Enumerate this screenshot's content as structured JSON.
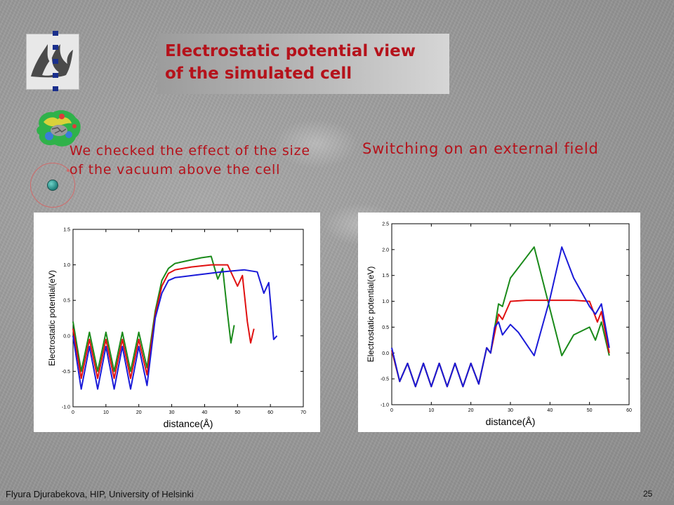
{
  "slide": {
    "title_line1": "Electrostatic potential  view",
    "title_line2": "of the simulated  cell",
    "bullet_text": "We checked the effect of the size of the vacuum above the cell",
    "right_heading": "Switching on an external field",
    "footer_text": "Flyura Djurabekova, HIP, University of Helsinki",
    "page_number": "25"
  },
  "icons": {
    "logo": "university-of-helsinki-flame-logo-icon",
    "molecule": "molecule-structure-icon",
    "bullet": "teal-bullet-icon"
  },
  "colors": {
    "title": "#b5121b",
    "text": "#b5121b",
    "green": "#1a8a1a",
    "red": "#e01010",
    "blue": "#1a1ad8"
  },
  "chart_data": [
    {
      "type": "line",
      "title": "",
      "xlabel": "distance(Å)",
      "ylabel": "Electrostatic potential(eV)",
      "xlim": [
        0,
        70
      ],
      "ylim": [
        -1.0,
        1.5
      ],
      "xticks": [
        "0",
        "10",
        "20",
        "30",
        "40",
        "50",
        "60",
        "70"
      ],
      "yticks": [
        "-1.0",
        "-0.5",
        "0.0",
        "0.5",
        "1.0",
        "1.5"
      ],
      "series": [
        {
          "color": "green",
          "x": [
            0,
            2.5,
            5,
            7.5,
            10,
            12.5,
            15,
            17.5,
            20,
            22.5,
            25,
            27,
            29,
            31,
            35,
            39,
            42,
            44,
            45.5,
            47,
            48,
            49
          ],
          "y": [
            0.2,
            -0.5,
            0.05,
            -0.5,
            0.05,
            -0.5,
            0.05,
            -0.5,
            0.05,
            -0.45,
            0.35,
            0.78,
            0.95,
            1.02,
            1.06,
            1.1,
            1.12,
            0.8,
            0.95,
            0.3,
            -0.1,
            0.15
          ]
        },
        {
          "color": "red",
          "x": [
            0,
            2.5,
            5,
            7.5,
            10,
            12.5,
            15,
            17.5,
            20,
            22.5,
            25,
            27,
            29,
            31,
            36,
            42,
            47,
            50,
            51.5,
            53,
            54,
            55
          ],
          "y": [
            0.1,
            -0.6,
            -0.05,
            -0.6,
            -0.05,
            -0.6,
            -0.05,
            -0.6,
            -0.05,
            -0.55,
            0.3,
            0.7,
            0.88,
            0.93,
            0.97,
            1.0,
            1.0,
            0.7,
            0.85,
            0.2,
            -0.1,
            0.1
          ]
        },
        {
          "color": "blue",
          "x": [
            0,
            2.5,
            5,
            7.5,
            10,
            12.5,
            15,
            17.5,
            20,
            22.5,
            25,
            27,
            29,
            31,
            38,
            45,
            52,
            56,
            58,
            59.5,
            61,
            62
          ],
          "y": [
            0.0,
            -0.75,
            -0.15,
            -0.75,
            -0.15,
            -0.75,
            -0.15,
            -0.75,
            -0.15,
            -0.7,
            0.25,
            0.6,
            0.78,
            0.82,
            0.86,
            0.9,
            0.93,
            0.9,
            0.6,
            0.75,
            -0.05,
            0.0
          ]
        }
      ]
    },
    {
      "type": "line",
      "title": "",
      "xlabel": "distance(Å)",
      "ylabel": "Electrostatic potential(eV)",
      "xlim": [
        0,
        60
      ],
      "ylim": [
        -1.0,
        2.5
      ],
      "xticks": [
        "0",
        "10",
        "20",
        "30",
        "40",
        "50",
        "60"
      ],
      "yticks": [
        "-1.0",
        "-0.5",
        "0.0",
        "0.5",
        "1.0",
        "1.5",
        "2.0",
        "2.5"
      ],
      "series": [
        {
          "color": "green",
          "x": [
            0,
            2,
            4,
            6,
            8,
            10,
            12,
            14,
            16,
            18,
            20,
            22,
            24,
            25,
            27,
            28,
            30,
            33,
            36,
            40,
            43,
            46,
            50,
            51.5,
            53,
            55
          ],
          "y": [
            0.05,
            -0.55,
            -0.2,
            -0.65,
            -0.2,
            -0.65,
            -0.2,
            -0.65,
            -0.2,
            -0.65,
            -0.2,
            -0.6,
            0.1,
            0.0,
            0.95,
            0.9,
            1.45,
            1.75,
            2.05,
            0.85,
            -0.05,
            0.35,
            0.5,
            0.25,
            0.6,
            -0.05
          ]
        },
        {
          "color": "red",
          "x": [
            0,
            2,
            4,
            6,
            8,
            10,
            12,
            14,
            16,
            18,
            20,
            22,
            24,
            25,
            27,
            28,
            30,
            34,
            40,
            46,
            50,
            52,
            53,
            55
          ],
          "y": [
            0.05,
            -0.55,
            -0.2,
            -0.65,
            -0.2,
            -0.65,
            -0.2,
            -0.65,
            -0.2,
            -0.65,
            -0.2,
            -0.6,
            0.1,
            0.0,
            0.75,
            0.65,
            1.0,
            1.02,
            1.02,
            1.02,
            1.0,
            0.6,
            0.8,
            0.0
          ]
        },
        {
          "color": "blue",
          "x": [
            0,
            2,
            4,
            6,
            8,
            10,
            12,
            14,
            16,
            18,
            20,
            22,
            24,
            25,
            26,
            27,
            28,
            30,
            32,
            36,
            40,
            43,
            46,
            50,
            51.5,
            53,
            55
          ],
          "y": [
            0.1,
            -0.55,
            -0.2,
            -0.65,
            -0.2,
            -0.65,
            -0.2,
            -0.65,
            -0.2,
            -0.65,
            -0.2,
            -0.6,
            0.1,
            0.0,
            0.5,
            0.6,
            0.35,
            0.55,
            0.4,
            -0.05,
            1.05,
            2.05,
            1.45,
            0.9,
            0.75,
            0.95,
            0.1
          ]
        }
      ]
    }
  ]
}
